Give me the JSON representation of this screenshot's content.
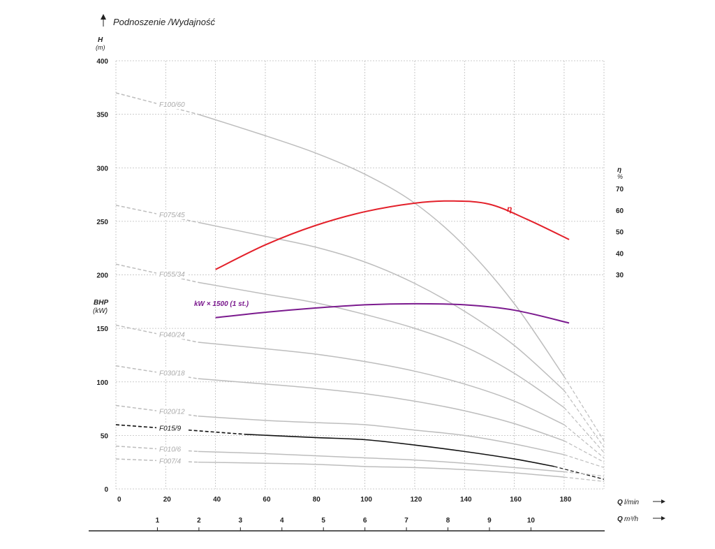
{
  "chart_data": {
    "type": "line",
    "title": "Podnoszenie /Wydajność",
    "y_axis": {
      "label": "H",
      "unit": "(m)",
      "ticks": [
        0,
        50,
        100,
        150,
        200,
        250,
        300,
        350,
        400
      ],
      "ylim": [
        0,
        400
      ]
    },
    "bhp_axis": {
      "label": "BHP",
      "unit": "(kW)"
    },
    "eff_axis": {
      "label": "η",
      "unit": "%",
      "ticks": [
        30,
        40,
        50,
        60,
        70
      ]
    },
    "x_axis_lmin": {
      "label": "Q",
      "unit": "l/min",
      "ticks": [
        0,
        20,
        40,
        60,
        80,
        100,
        120,
        140,
        160,
        180
      ]
    },
    "x_axis_m3h": {
      "label": "Q",
      "unit": "m³/h",
      "ticks": [
        1,
        2,
        3,
        4,
        5,
        6,
        7,
        8,
        9,
        10
      ]
    },
    "grid": true,
    "series": [
      {
        "name": "F100/60",
        "color": "#bdbdbd",
        "highlight": false,
        "dash_start": [
          [
            0,
            370
          ],
          [
            33,
            350
          ]
        ],
        "solid": [
          [
            33,
            350
          ],
          [
            60,
            330
          ],
          [
            80,
            314
          ],
          [
            100,
            294
          ],
          [
            120,
            267
          ],
          [
            140,
            227
          ],
          [
            160,
            173
          ],
          [
            180,
            105
          ]
        ],
        "dash_end": [
          [
            180,
            105
          ],
          [
            196,
            45
          ]
        ]
      },
      {
        "name": "F075/45",
        "color": "#bdbdbd",
        "highlight": false,
        "dash_start": [
          [
            0,
            265
          ],
          [
            33,
            249
          ]
        ],
        "solid": [
          [
            33,
            249
          ],
          [
            60,
            236
          ],
          [
            80,
            226
          ],
          [
            100,
            212
          ],
          [
            120,
            192
          ],
          [
            140,
            166
          ],
          [
            160,
            134
          ],
          [
            180,
            92
          ]
        ],
        "dash_end": [
          [
            180,
            92
          ],
          [
            196,
            39
          ]
        ]
      },
      {
        "name": "F055/34",
        "color": "#bdbdbd",
        "highlight": false,
        "dash_start": [
          [
            0,
            210
          ],
          [
            33,
            193
          ]
        ],
        "solid": [
          [
            33,
            193
          ],
          [
            60,
            182
          ],
          [
            80,
            174
          ],
          [
            100,
            163
          ],
          [
            120,
            150
          ],
          [
            140,
            133
          ],
          [
            160,
            108
          ],
          [
            180,
            76
          ]
        ],
        "dash_end": [
          [
            180,
            76
          ],
          [
            196,
            34
          ]
        ]
      },
      {
        "name": "F040/24",
        "color": "#bdbdbd",
        "highlight": false,
        "dash_start": [
          [
            0,
            153
          ],
          [
            33,
            137
          ]
        ],
        "solid": [
          [
            33,
            137
          ],
          [
            60,
            131
          ],
          [
            80,
            126
          ],
          [
            100,
            119
          ],
          [
            120,
            110
          ],
          [
            140,
            98
          ],
          [
            160,
            82
          ],
          [
            180,
            60
          ]
        ],
        "dash_end": [
          [
            180,
            60
          ],
          [
            196,
            29
          ]
        ]
      },
      {
        "name": "F030/18",
        "color": "#bdbdbd",
        "highlight": false,
        "dash_start": [
          [
            0,
            115
          ],
          [
            33,
            103
          ]
        ],
        "solid": [
          [
            33,
            103
          ],
          [
            60,
            98
          ],
          [
            80,
            94
          ],
          [
            100,
            89
          ],
          [
            120,
            82
          ],
          [
            140,
            73
          ],
          [
            160,
            61
          ],
          [
            180,
            45
          ]
        ],
        "dash_end": [
          [
            180,
            45
          ],
          [
            196,
            25
          ]
        ]
      },
      {
        "name": "F020/12",
        "color": "#bdbdbd",
        "highlight": false,
        "dash_start": [
          [
            0,
            78
          ],
          [
            33,
            68
          ]
        ],
        "solid": [
          [
            33,
            68
          ],
          [
            60,
            64
          ],
          [
            80,
            62
          ],
          [
            100,
            60
          ],
          [
            120,
            55
          ],
          [
            140,
            50
          ],
          [
            160,
            42
          ],
          [
            180,
            32
          ]
        ],
        "dash_end": [
          [
            180,
            32
          ],
          [
            196,
            20
          ]
        ]
      },
      {
        "name": "F015/9",
        "color": "#111111",
        "highlight": true,
        "dash_start": [
          [
            0,
            60
          ],
          [
            52,
            51
          ]
        ],
        "solid": [
          [
            52,
            51
          ],
          [
            80,
            48
          ],
          [
            100,
            46
          ],
          [
            120,
            41
          ],
          [
            140,
            35
          ],
          [
            160,
            28
          ],
          [
            176,
            21
          ]
        ],
        "dash_end": [
          [
            176,
            21
          ],
          [
            196,
            9
          ]
        ]
      },
      {
        "name": "F010/6",
        "color": "#bdbdbd",
        "highlight": false,
        "dash_start": [
          [
            0,
            40
          ],
          [
            33,
            35
          ]
        ],
        "solid": [
          [
            33,
            35
          ],
          [
            60,
            33
          ],
          [
            80,
            31
          ],
          [
            100,
            29
          ],
          [
            120,
            27
          ],
          [
            140,
            24
          ],
          [
            160,
            20
          ],
          [
            180,
            16
          ]
        ],
        "dash_end": [
          [
            180,
            16
          ],
          [
            196,
            12
          ]
        ]
      },
      {
        "name": "F007/4",
        "color": "#bdbdbd",
        "highlight": false,
        "dash_start": [
          [
            0,
            28
          ],
          [
            33,
            25
          ]
        ],
        "solid": [
          [
            33,
            25
          ],
          [
            60,
            24
          ],
          [
            80,
            23
          ],
          [
            100,
            21
          ],
          [
            120,
            20
          ],
          [
            140,
            18
          ],
          [
            160,
            15
          ],
          [
            180,
            11
          ]
        ],
        "dash_end": [
          [
            180,
            11
          ],
          [
            196,
            7
          ]
        ]
      }
    ],
    "efficiency_curve": {
      "name": "η",
      "color": "#e3202a",
      "points": [
        [
          40,
          205
        ],
        [
          60,
          228
        ],
        [
          80,
          246
        ],
        [
          100,
          259
        ],
        [
          120,
          267
        ],
        [
          135,
          269
        ],
        [
          150,
          266
        ],
        [
          165,
          252
        ],
        [
          182,
          233
        ]
      ]
    },
    "power_curve": {
      "name": "kW × 1500 (1 st.)",
      "color": "#7b1a8e",
      "points": [
        [
          40,
          160
        ],
        [
          60,
          165
        ],
        [
          80,
          169
        ],
        [
          100,
          172
        ],
        [
          120,
          173
        ],
        [
          140,
          172
        ],
        [
          160,
          167
        ],
        [
          182,
          155
        ]
      ]
    }
  }
}
